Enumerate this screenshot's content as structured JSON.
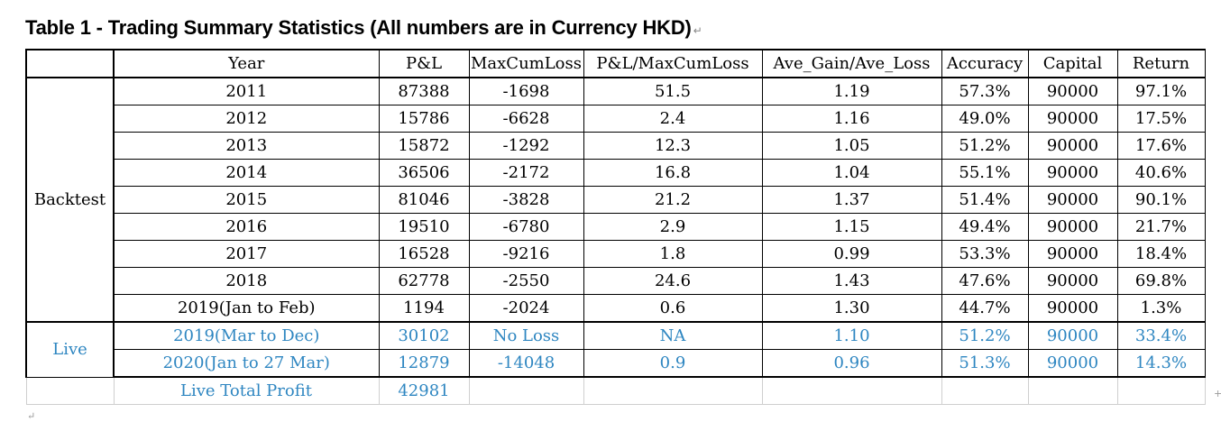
{
  "title": "Table 1 - Trading Summary Statistics (All numbers are in Currency HKD)",
  "title_mark": "↵",
  "bottom_mark": "↵",
  "side_mark": "+",
  "colors": {
    "live_text": "#2e86c1",
    "border": "#000000"
  },
  "headers": [
    "Year",
    "P&L",
    "MaxCumLoss",
    "P&L/MaxCumLoss",
    "Ave_Gain/Ave_Loss",
    "Accuracy",
    "Capital",
    "Return"
  ],
  "groups": {
    "backtest": "Backtest",
    "live": "Live"
  },
  "backtest_rows": [
    {
      "year": "2011",
      "pl": "87388",
      "maxcumloss": "-1698",
      "ratio": "51.5",
      "gainloss": "1.19",
      "accuracy": "57.3%",
      "capital": "90000",
      "return": "97.1%"
    },
    {
      "year": "2012",
      "pl": "15786",
      "maxcumloss": "-6628",
      "ratio": "2.4",
      "gainloss": "1.16",
      "accuracy": "49.0%",
      "capital": "90000",
      "return": "17.5%"
    },
    {
      "year": "2013",
      "pl": "15872",
      "maxcumloss": "-1292",
      "ratio": "12.3",
      "gainloss": "1.05",
      "accuracy": "51.2%",
      "capital": "90000",
      "return": "17.6%"
    },
    {
      "year": "2014",
      "pl": "36506",
      "maxcumloss": "-2172",
      "ratio": "16.8",
      "gainloss": "1.04",
      "accuracy": "55.1%",
      "capital": "90000",
      "return": "40.6%"
    },
    {
      "year": "2015",
      "pl": "81046",
      "maxcumloss": "-3828",
      "ratio": "21.2",
      "gainloss": "1.37",
      "accuracy": "51.4%",
      "capital": "90000",
      "return": "90.1%"
    },
    {
      "year": "2016",
      "pl": "19510",
      "maxcumloss": "-6780",
      "ratio": "2.9",
      "gainloss": "1.15",
      "accuracy": "49.4%",
      "capital": "90000",
      "return": "21.7%"
    },
    {
      "year": "2017",
      "pl": "16528",
      "maxcumloss": "-9216",
      "ratio": "1.8",
      "gainloss": "0.99",
      "accuracy": "53.3%",
      "capital": "90000",
      "return": "18.4%"
    },
    {
      "year": "2018",
      "pl": "62778",
      "maxcumloss": "-2550",
      "ratio": "24.6",
      "gainloss": "1.43",
      "accuracy": "47.6%",
      "capital": "90000",
      "return": "69.8%"
    },
    {
      "year": "2019(Jan to Feb)",
      "pl": "1194",
      "maxcumloss": "-2024",
      "ratio": "0.6",
      "gainloss": "1.30",
      "accuracy": "44.7%",
      "capital": "90000",
      "return": "1.3%"
    }
  ],
  "live_rows": [
    {
      "year": "2019(Mar to Dec)",
      "pl": "30102",
      "maxcumloss": "No Loss",
      "ratio": "NA",
      "gainloss": "1.10",
      "accuracy": "51.2%",
      "capital": "90000",
      "return": "33.4%"
    },
    {
      "year": "2020(Jan to 27 Mar)",
      "pl": "12879",
      "maxcumloss": "-14048",
      "ratio": "0.9",
      "gainloss": "0.96",
      "accuracy": "51.3%",
      "capital": "90000",
      "return": "14.3%"
    }
  ],
  "total": {
    "label": "Live Total Profit",
    "value": "42981"
  }
}
